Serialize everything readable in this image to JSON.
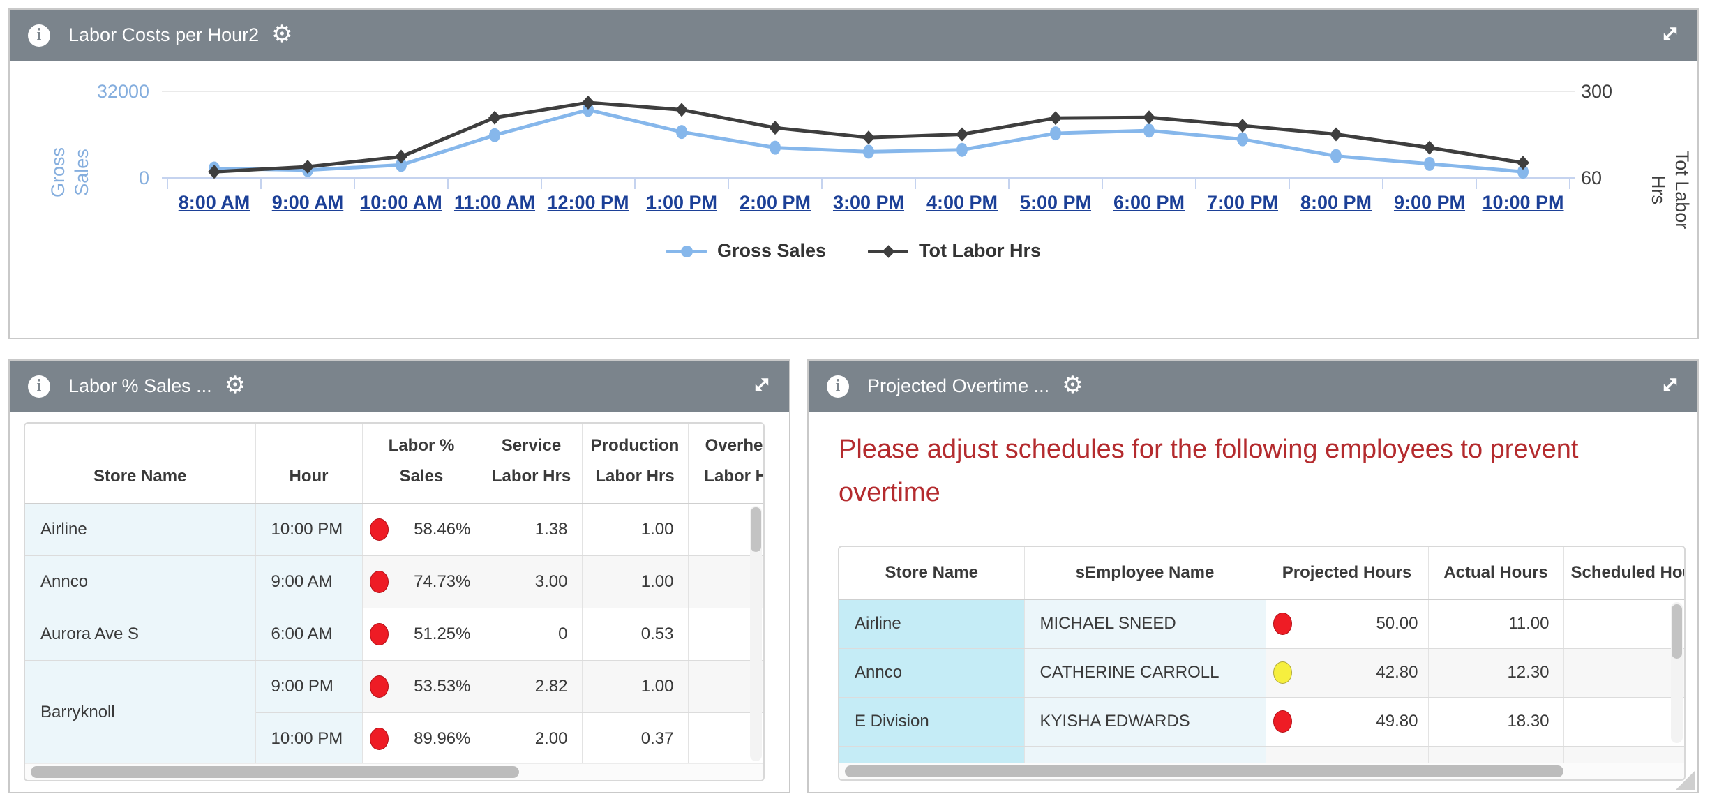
{
  "top_panel": {
    "title": "Labor Costs per Hour2"
  },
  "chart_data": {
    "type": "line",
    "title": "Labor Costs per Hour2",
    "x": [
      "8:00 AM",
      "9:00 AM",
      "10:00 AM",
      "11:00 AM",
      "12:00 PM",
      "1:00 PM",
      "2:00 PM",
      "3:00 PM",
      "4:00 PM",
      "5:00 PM",
      "6:00 PM",
      "7:00 PM",
      "8:00 PM",
      "9:00 PM",
      "10:00 PM"
    ],
    "series": [
      {
        "name": "Gross Sales",
        "axis": "left",
        "marker": "circle",
        "color": "#86b7eb",
        "values": [
          3500,
          2900,
          4800,
          15800,
          25200,
          17000,
          11200,
          9700,
          10400,
          16500,
          17500,
          14300,
          8100,
          5200,
          2300
        ]
      },
      {
        "name": "Tot Labor Hrs",
        "axis": "right",
        "marker": "diamond",
        "color": "#3e3e3e",
        "values": [
          77,
          91,
          119,
          227,
          269,
          249,
          199,
          172,
          181,
          226,
          228,
          205,
          181,
          144,
          102
        ]
      }
    ],
    "left_axis": {
      "label": "Gross Sales",
      "label_lines": [
        "Gross",
        "Sales"
      ],
      "range": [
        0,
        32000
      ],
      "ticks": [
        "32000",
        "0"
      ],
      "color": "#85aede"
    },
    "right_axis": {
      "label": "Tot Labor Hrs",
      "label_lines": [
        "Tot Labor",
        "Hrs"
      ],
      "range": [
        60,
        300
      ],
      "ticks": [
        "300",
        "60"
      ],
      "color": "#3f3f3f"
    },
    "legend_position": "bottom",
    "grid": "top-gridline-only",
    "x_link_color": "#1c4097"
  },
  "labor_panel": {
    "title": "Labor % Sales ...",
    "columns": [
      "Store Name",
      "Hour",
      "Labor % Sales",
      "Service Labor Hrs",
      "Production Labor Hrs",
      "Overhead Labor Hrs"
    ],
    "rows": [
      {
        "store": "Airline",
        "hour": "10:00 PM",
        "status": "red",
        "labor_pct": "58.46%",
        "service": "1.38",
        "production": "1.00",
        "overhead": ""
      },
      {
        "store": "Annco",
        "hour": "9:00 AM",
        "status": "red",
        "labor_pct": "74.73%",
        "service": "3.00",
        "production": "1.00",
        "overhead": ""
      },
      {
        "store": "Aurora Ave S",
        "hour": "6:00 AM",
        "status": "red",
        "labor_pct": "51.25%",
        "service": "0",
        "production": "0.53",
        "overhead": ""
      },
      {
        "store": "Barryknoll",
        "hour": "9:00 PM",
        "status": "red",
        "labor_pct": "53.53%",
        "service": "2.82",
        "production": "1.00",
        "overhead": ""
      },
      {
        "store": "",
        "hour": "10:00 PM",
        "status": "red",
        "labor_pct": "89.96%",
        "service": "2.00",
        "production": "0.37",
        "overhead": ""
      }
    ]
  },
  "overtime_panel": {
    "title": "Projected Overtime ...",
    "warning": "Please adjust schedules for the following employees to prevent overtime",
    "columns": [
      "Store Name",
      "sEmployee Name",
      "Projected Hours",
      "Actual Hours",
      "Scheduled Hours"
    ],
    "rows": [
      {
        "store": "Airline",
        "employee": "MICHAEL SNEED",
        "status": "red",
        "projected": "50.00",
        "actual": "11.00",
        "scheduled": ""
      },
      {
        "store": "Annco",
        "employee": "CATHERINE CARROLL",
        "status": "yellow",
        "projected": "42.80",
        "actual": "12.30",
        "scheduled": ""
      },
      {
        "store": "E Division",
        "employee": "KYISHA EDWARDS",
        "status": "red",
        "projected": "49.80",
        "actual": "18.30",
        "scheduled": ""
      }
    ]
  },
  "icons": {
    "info_glyph": "i",
    "gear_glyph": "⚙"
  },
  "colors": {
    "panel_header_bg": "#7b848c",
    "link_blue": "#1c4097",
    "warning_red": "#b42b2e",
    "status_red": "#ee1c25",
    "status_yellow": "#f6ef3e",
    "store_col_cyan": "#c5ecf6",
    "store_col_light_cyan": "#ecf6fa",
    "alt_row_gray": "#f7f7f7",
    "gridline": "#eaeaea",
    "axis_blue": "#c5d3ef"
  }
}
